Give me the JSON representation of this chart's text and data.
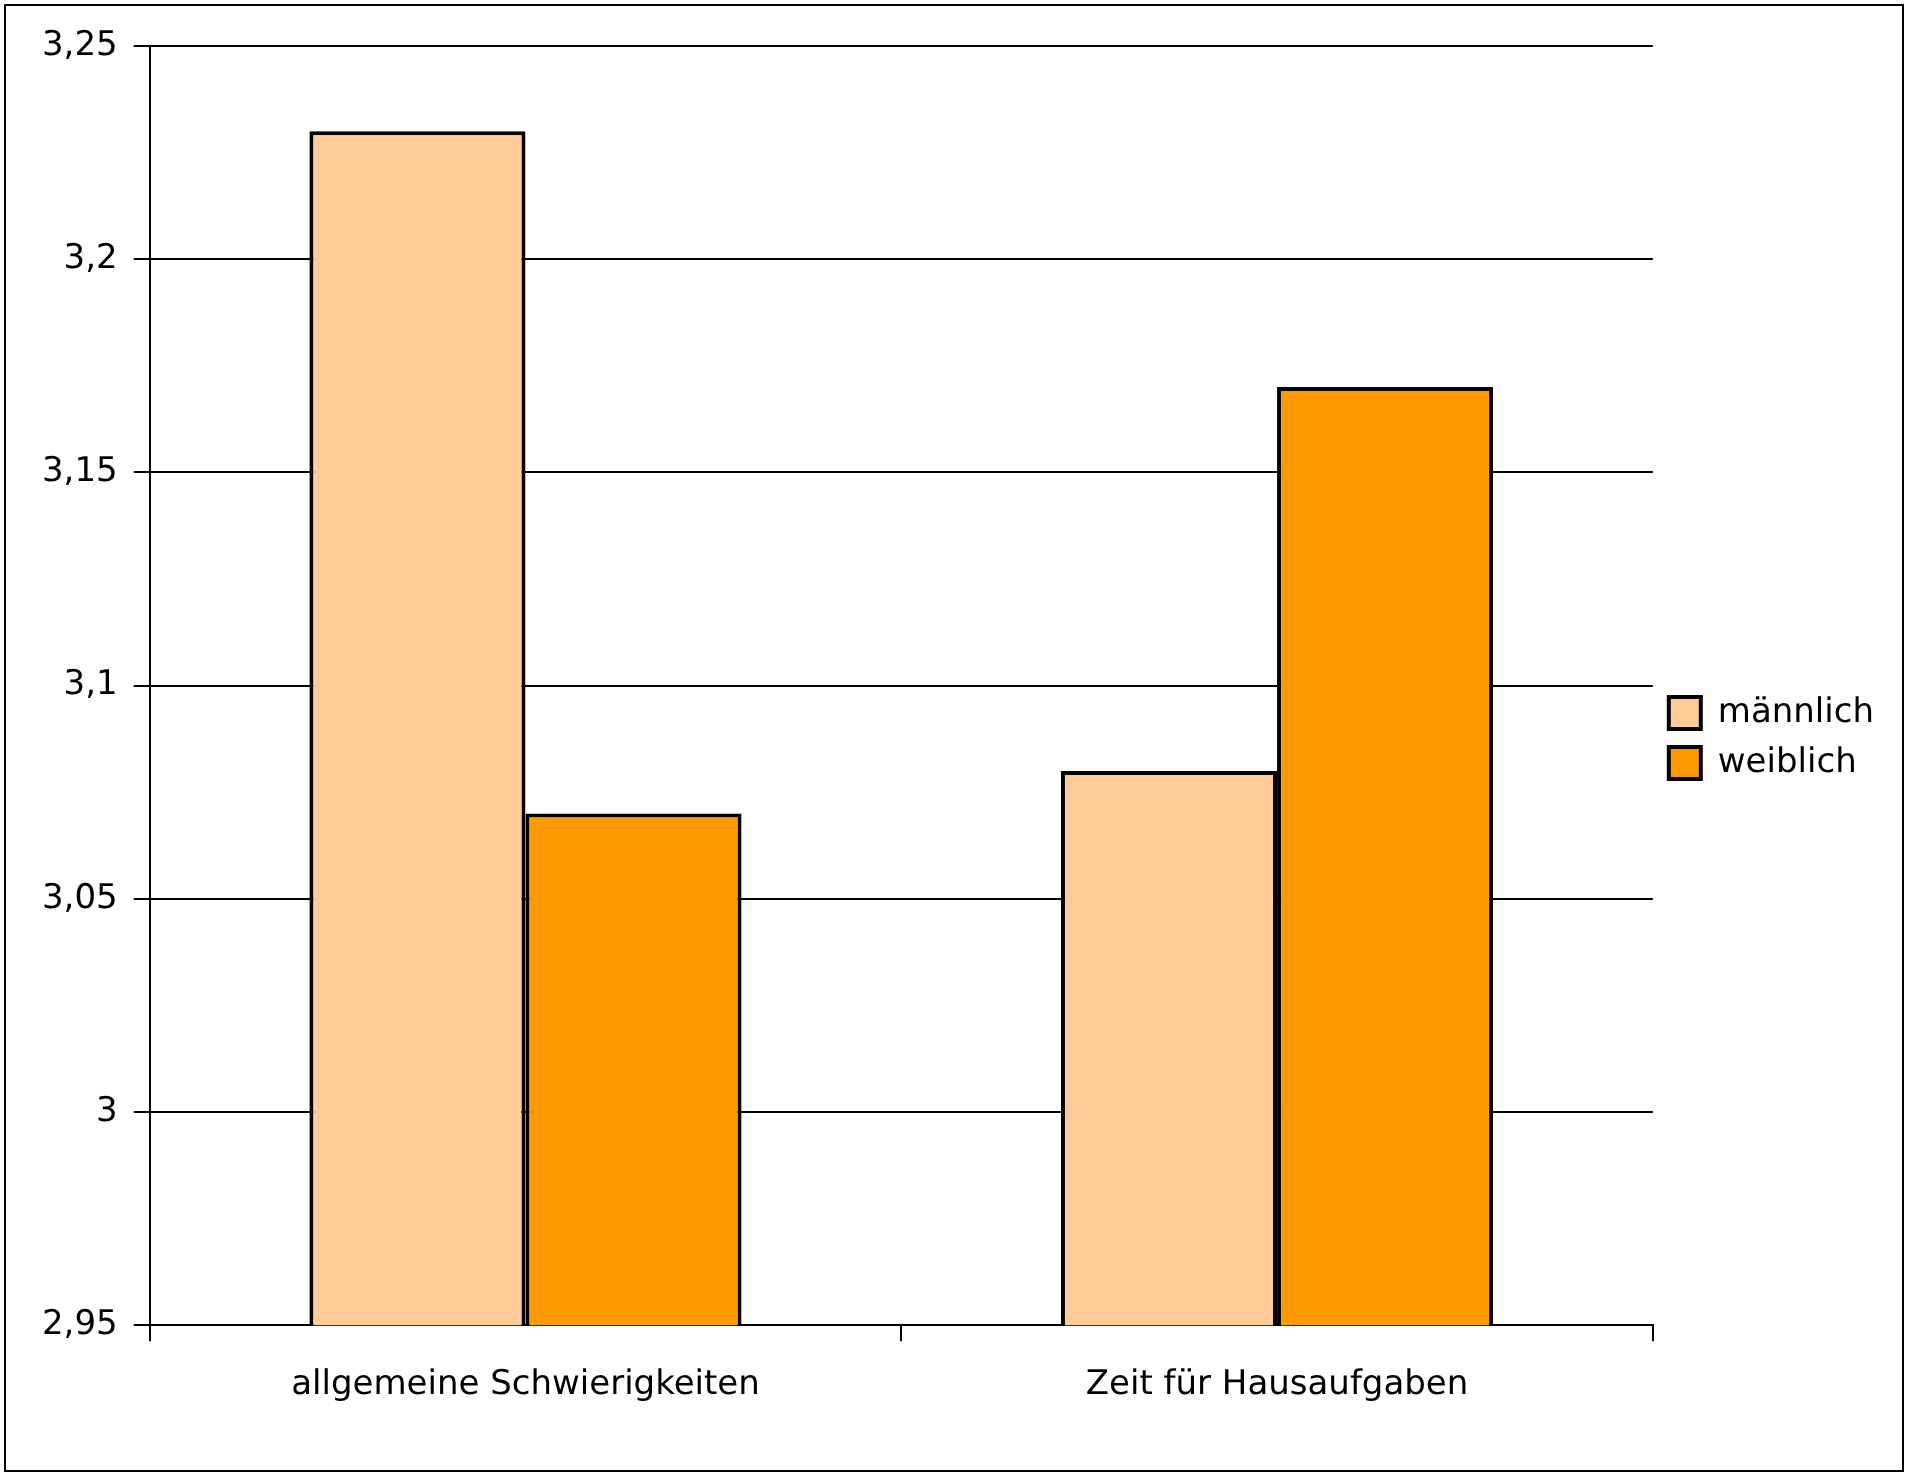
{
  "chart_data": {
    "type": "bar",
    "categories": [
      "allgemeine Schwierigkeiten",
      "Zeit für Hausaufgaben"
    ],
    "series": [
      {
        "name": "männlich",
        "color": "#ffcc99",
        "values": [
          3.23,
          3.08
        ]
      },
      {
        "name": "weiblich",
        "color": "#ff9900",
        "values": [
          3.07,
          3.17
        ]
      }
    ],
    "ylim": [
      2.95,
      3.25
    ],
    "yticks": [
      {
        "value": 2.95,
        "label": "2,95"
      },
      3,
      {
        "value": 3.05,
        "label": "3,05"
      },
      {
        "value": 3.1,
        "label": "3,1"
      },
      {
        "value": 3.15,
        "label": "3,15"
      },
      {
        "value": 3.2,
        "label": "3,2"
      },
      {
        "value": 3.25,
        "label": "3,25"
      }
    ],
    "grid": "y",
    "legend": "right"
  }
}
